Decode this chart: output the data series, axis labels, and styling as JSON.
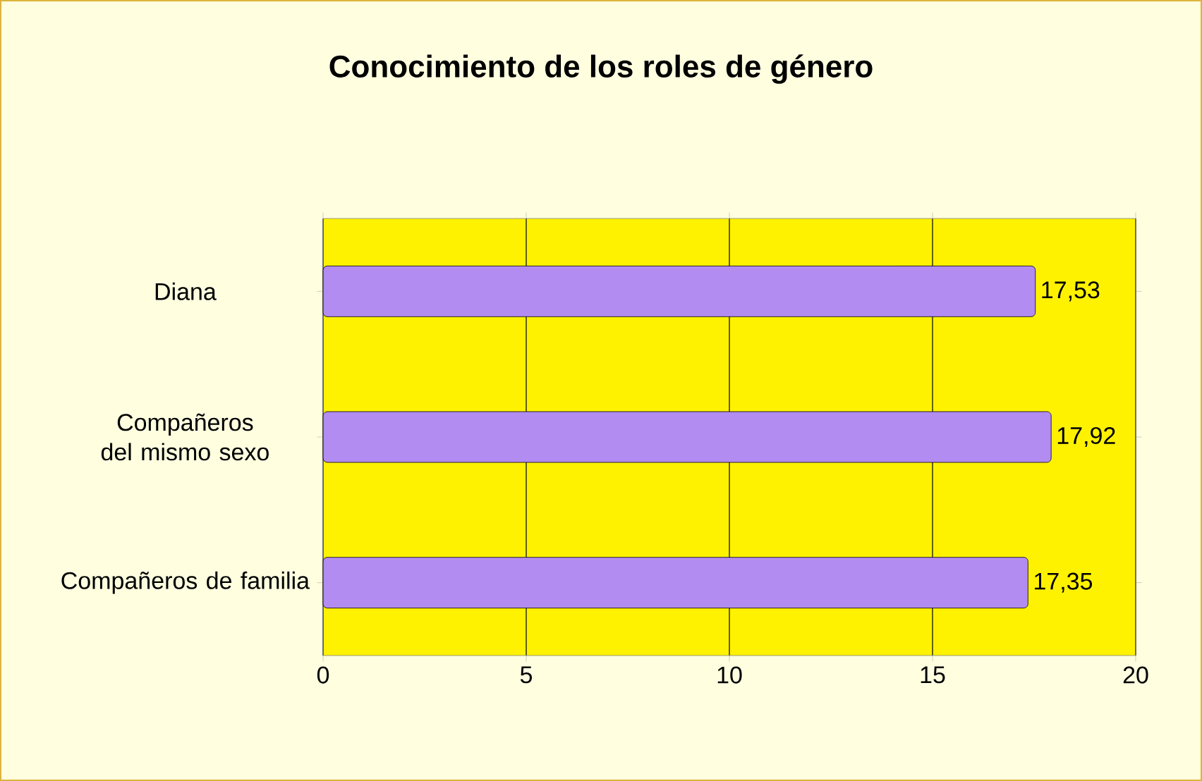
{
  "chart_data": {
    "type": "bar",
    "orientation": "horizontal",
    "title": "Conocimiento de los roles de género",
    "categories": [
      "Diana",
      "Compañeros del mismo sexo",
      "Compañeros de familia"
    ],
    "values": [
      17.53,
      17.92,
      17.35
    ],
    "value_labels": [
      "17,53",
      "17,92",
      "17,35"
    ],
    "color": "#b28cf0",
    "xlim": [
      0,
      20
    ],
    "xticks": [
      0,
      5,
      10,
      15,
      20
    ],
    "grid": "x"
  }
}
